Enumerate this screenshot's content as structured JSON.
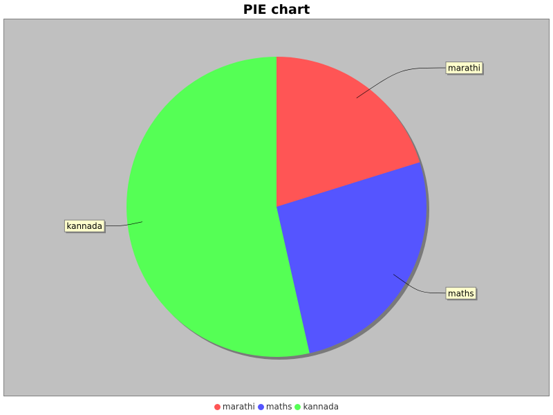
{
  "chart_data": {
    "type": "pie",
    "title": "PIE chart",
    "labels": [
      "marathi",
      "maths",
      "kannada"
    ],
    "values": [
      20,
      26,
      53
    ],
    "colors": [
      "#ff5555",
      "#5555ff",
      "#55ff55"
    ],
    "start_angle_deg": 90,
    "direction": "clockwise",
    "legend": "bottom",
    "plot_background": "#c0c0c0",
    "label_box_color": "#ffffcc"
  }
}
